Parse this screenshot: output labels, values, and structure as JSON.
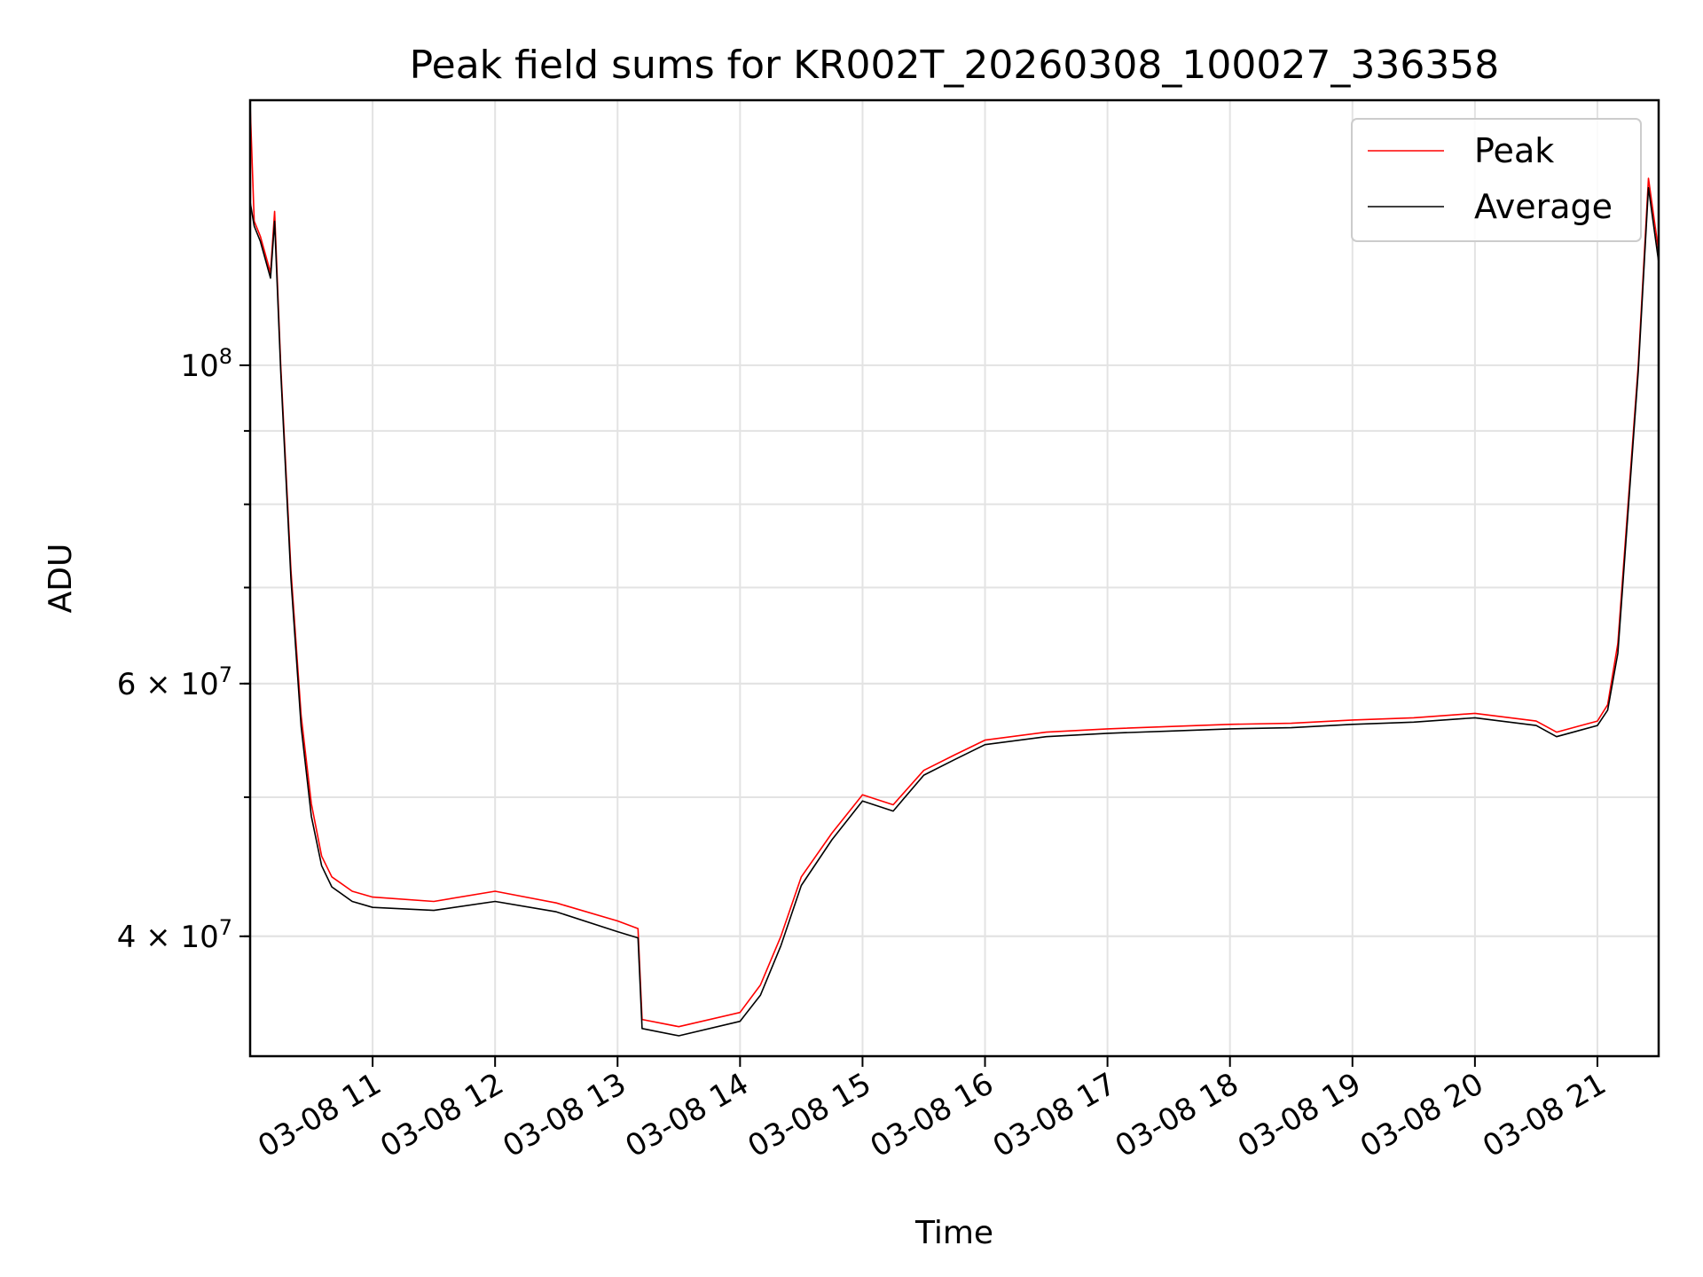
{
  "chart_data": {
    "type": "line",
    "title": "Peak field sums for KR002T_20260308_100027_336358",
    "xlabel": "Time",
    "ylabel": "ADU",
    "x_tick_labels": [
      "03-08 11",
      "03-08 12",
      "03-08 13",
      "03-08 14",
      "03-08 15",
      "03-08 16",
      "03-08 17",
      "03-08 18",
      "03-08 19",
      "03-08 20",
      "03-08 21"
    ],
    "y_scale": "log",
    "y_tick_labels": [
      {
        "value": 100000000,
        "mantissa": "",
        "base": "10",
        "exp": "8"
      },
      {
        "value": 60000000,
        "mantissa": "6",
        "base": "10",
        "exp": "7"
      },
      {
        "value": 40000000,
        "mantissa": "4",
        "base": "10",
        "exp": "7"
      }
    ],
    "xlim": [
      "2026-03-08 10:00",
      "2026-03-08 21:30"
    ],
    "ylim": [
      33000000,
      153000000
    ],
    "grid": true,
    "legend_position": "top-right",
    "series": [
      {
        "name": "Peak",
        "color": "#ff0000",
        "x": [
          "2026-03-08 10:00",
          "2026-03-08 10:02",
          "2026-03-08 10:05",
          "2026-03-08 10:10",
          "2026-03-08 10:12",
          "2026-03-08 10:15",
          "2026-03-08 10:20",
          "2026-03-08 10:25",
          "2026-03-08 10:30",
          "2026-03-08 10:35",
          "2026-03-08 10:40",
          "2026-03-08 10:50",
          "2026-03-08 11:00",
          "2026-03-08 11:30",
          "2026-03-08 12:00",
          "2026-03-08 12:30",
          "2026-03-08 13:00",
          "2026-03-08 13:10",
          "2026-03-08 13:12",
          "2026-03-08 13:30",
          "2026-03-08 14:00",
          "2026-03-08 14:10",
          "2026-03-08 14:20",
          "2026-03-08 14:30",
          "2026-03-08 14:45",
          "2026-03-08 15:00",
          "2026-03-08 15:15",
          "2026-03-08 15:30",
          "2026-03-08 15:45",
          "2026-03-08 16:00",
          "2026-03-08 16:30",
          "2026-03-08 17:00",
          "2026-03-08 17:30",
          "2026-03-08 18:00",
          "2026-03-08 18:30",
          "2026-03-08 19:00",
          "2026-03-08 19:30",
          "2026-03-08 20:00",
          "2026-03-08 20:30",
          "2026-03-08 20:40",
          "2026-03-08 21:00",
          "2026-03-08 21:05",
          "2026-03-08 21:10",
          "2026-03-08 21:15",
          "2026-03-08 21:20",
          "2026-03-08 21:25",
          "2026-03-08 21:30"
        ],
        "y": [
          152000000,
          126000000,
          123000000,
          116000000,
          128000000,
          100000000,
          72000000,
          57000000,
          49500000,
          45500000,
          44000000,
          43000000,
          42600000,
          42300000,
          43000000,
          42200000,
          41000000,
          40500000,
          35000000,
          34600000,
          35400000,
          37000000,
          40000000,
          44000000,
          47200000,
          50200000,
          49400000,
          52200000,
          53500000,
          54800000,
          55500000,
          55800000,
          56000000,
          56200000,
          56300000,
          56600000,
          56800000,
          57200000,
          56500000,
          55500000,
          56500000,
          58000000,
          64000000,
          80000000,
          100000000,
          135000000,
          120000000
        ]
      },
      {
        "name": "Average",
        "color": "#000000",
        "x": [
          "2026-03-08 10:00",
          "2026-03-08 10:02",
          "2026-03-08 10:05",
          "2026-03-08 10:10",
          "2026-03-08 10:12",
          "2026-03-08 10:15",
          "2026-03-08 10:20",
          "2026-03-08 10:25",
          "2026-03-08 10:30",
          "2026-03-08 10:35",
          "2026-03-08 10:40",
          "2026-03-08 10:50",
          "2026-03-08 11:00",
          "2026-03-08 11:30",
          "2026-03-08 12:00",
          "2026-03-08 12:30",
          "2026-03-08 13:00",
          "2026-03-08 13:10",
          "2026-03-08 13:12",
          "2026-03-08 13:30",
          "2026-03-08 14:00",
          "2026-03-08 14:10",
          "2026-03-08 14:20",
          "2026-03-08 14:30",
          "2026-03-08 14:45",
          "2026-03-08 15:00",
          "2026-03-08 15:15",
          "2026-03-08 15:30",
          "2026-03-08 15:45",
          "2026-03-08 16:00",
          "2026-03-08 16:30",
          "2026-03-08 17:00",
          "2026-03-08 17:30",
          "2026-03-08 18:00",
          "2026-03-08 18:30",
          "2026-03-08 19:00",
          "2026-03-08 19:30",
          "2026-03-08 20:00",
          "2026-03-08 20:30",
          "2026-03-08 20:40",
          "2026-03-08 21:00",
          "2026-03-08 21:05",
          "2026-03-08 21:10",
          "2026-03-08 21:15",
          "2026-03-08 21:20",
          "2026-03-08 21:25",
          "2026-03-08 21:30"
        ],
        "y": [
          130000000,
          125000000,
          122000000,
          115000000,
          126000000,
          99000000,
          71000000,
          56000000,
          48500000,
          44800000,
          43300000,
          42300000,
          41900000,
          41700000,
          42300000,
          41600000,
          40300000,
          39900000,
          34500000,
          34100000,
          34900000,
          36400000,
          39400000,
          43400000,
          46700000,
          49700000,
          48900000,
          51800000,
          53100000,
          54400000,
          55100000,
          55400000,
          55600000,
          55800000,
          55900000,
          56200000,
          56400000,
          56800000,
          56100000,
          55100000,
          56100000,
          57500000,
          63000000,
          79000000,
          99000000,
          133000000,
          118000000
        ]
      }
    ]
  }
}
